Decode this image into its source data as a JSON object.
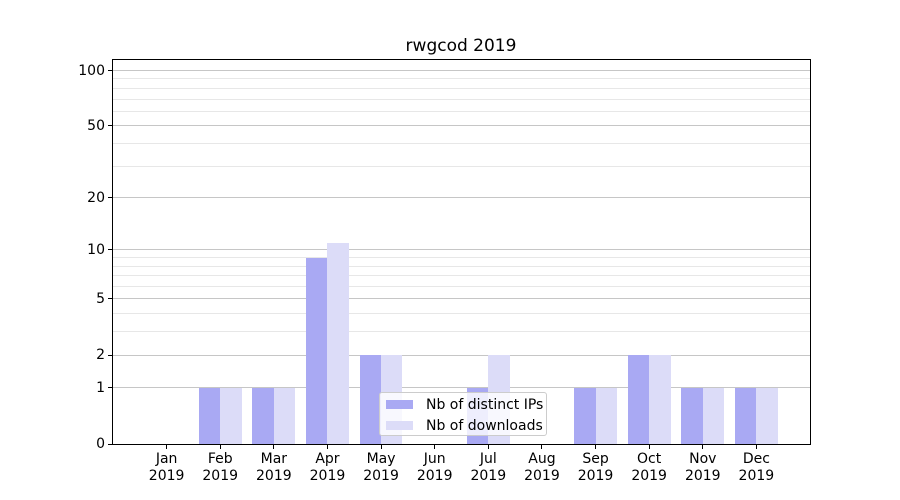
{
  "chart_data": {
    "type": "bar",
    "title": "rwgcod 2019",
    "categories": [
      "Jan 2019",
      "Feb 2019",
      "Mar 2019",
      "Apr 2019",
      "May 2019",
      "Jun 2019",
      "Jul 2019",
      "Aug 2019",
      "Sep 2019",
      "Oct 2019",
      "Nov 2019",
      "Dec 2019"
    ],
    "series": [
      {
        "name": "Nb of distinct IPs",
        "color": "#a9a9f3",
        "values": [
          0,
          1,
          1,
          9,
          2,
          0,
          1,
          0,
          1,
          2,
          1,
          1
        ]
      },
      {
        "name": "Nb of downloads",
        "color": "#dcdcf8",
        "values": [
          0,
          1,
          1,
          11,
          2,
          0,
          2,
          0,
          1,
          2,
          1,
          1
        ]
      }
    ],
    "xlabel": "",
    "ylabel": "",
    "yscale": "log1p",
    "ylim": [
      0,
      114
    ],
    "y_major_ticks": [
      0,
      1,
      2,
      5,
      10,
      20,
      50,
      100
    ],
    "y_minor_ticks": [
      3,
      4,
      6,
      7,
      8,
      9,
      30,
      40,
      60,
      70,
      80,
      90
    ],
    "grid": "horizontal",
    "legend_position": "inside-bottom-center"
  },
  "colors": {
    "major_grid": "#c6c6c6",
    "minor_grid": "#e7e7e7",
    "spine": "#000000",
    "tick_text": "#000000",
    "legend_border": "#cccccc"
  }
}
